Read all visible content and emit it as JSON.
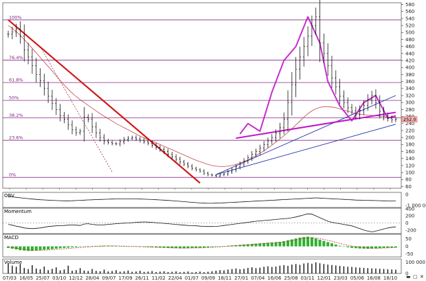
{
  "window": {
    "min_glyph": "▬",
    "restore_glyph": "▢",
    "close_glyph": "✕"
  },
  "chart_data": [
    {
      "type": "line",
      "panel": "price",
      "title": "",
      "x_tick_labels": [
        "07/03",
        "16/05",
        "25/07",
        "03/10",
        "12/12",
        "28/04",
        "09/07",
        "17/09",
        "26/11",
        "11/02",
        "22/04",
        "01/07",
        "09/09",
        "18/11",
        "27/01",
        "07/04",
        "16/06",
        "25/08",
        "03/11",
        "12/01",
        "23/03",
        "05/06",
        "16/08",
        "18/10"
      ],
      "y_ticks": [
        60,
        80,
        100,
        120,
        140,
        160,
        180,
        200,
        220,
        240,
        260,
        280,
        300,
        320,
        340,
        360,
        380,
        400,
        420,
        440,
        460,
        480,
        500,
        520,
        540,
        560,
        580
      ],
      "ylim": [
        55,
        585
      ],
      "grid": false,
      "fib_levels": [
        {
          "label": "100%",
          "value": 536
        },
        {
          "label": "76.4%",
          "value": 421
        },
        {
          "label": "61.8%",
          "value": 357
        },
        {
          "label": "50%",
          "value": 306
        },
        {
          "label": "38.2%",
          "value": 256
        },
        {
          "label": "23.6%",
          "value": 192
        },
        {
          "label": "0%",
          "value": 86
        }
      ],
      "last_price_label": "252.0",
      "last_price": 252,
      "series": [
        {
          "role": "close",
          "values": [
            495,
            502,
            510,
            490,
            450,
            430,
            405,
            380,
            362,
            340,
            318,
            297,
            280,
            262,
            252,
            236,
            222,
            214,
            218,
            258,
            252,
            230,
            213,
            200,
            190,
            186,
            183,
            182,
            188,
            194,
            198,
            200,
            196,
            192,
            188,
            184,
            178,
            172,
            166,
            160,
            152,
            145,
            138,
            130,
            124,
            118,
            112,
            108,
            104,
            98,
            94,
            92,
            90,
            93,
            96,
            102,
            108,
            116,
            124,
            133,
            142,
            152,
            160,
            170,
            180,
            190,
            200,
            212,
            228,
            252,
            300,
            350,
            395,
            430,
            460,
            490,
            520,
            545,
            470,
            440,
            405,
            370,
            345,
            318,
            300,
            285,
            276,
            265,
            278,
            292,
            308,
            320,
            300,
            275,
            262,
            255,
            250,
            252
          ]
        },
        {
          "role": "moving-average",
          "values": [
            520,
            512,
            503,
            492,
            480,
            467,
            455,
            442,
            429,
            416,
            403,
            390,
            376,
            363,
            350,
            338,
            327,
            317,
            308,
            300,
            292,
            284,
            276,
            268,
            261,
            254,
            247,
            240,
            234,
            228,
            222,
            216,
            210,
            204,
            199,
            194,
            190,
            185,
            180,
            175,
            170,
            165,
            160,
            155,
            150,
            145,
            140,
            135,
            131,
            127,
            123,
            120,
            118,
            117,
            117,
            118,
            120,
            123,
            127,
            131,
            136,
            142,
            148,
            155,
            162,
            170,
            178,
            187,
            196,
            205,
            215,
            225,
            236,
            247,
            258,
            268,
            276,
            282,
            286,
            288,
            288,
            287,
            285,
            282,
            278,
            275,
            272,
            269,
            267,
            265,
            264,
            263,
            262,
            261,
            260,
            259,
            258,
            258
          ]
        }
      ],
      "trendlines": [
        {
          "role": "downtrend",
          "color": "#d01818",
          "x": [
            0,
            48
          ],
          "y": [
            536,
            70
          ]
        },
        {
          "role": "dashed-downtrend",
          "color": "#8a1a1a",
          "x": [
            8,
            26
          ],
          "y": [
            460,
            102
          ]
        },
        {
          "role": "uptrend-1",
          "color": "#1a2aa8",
          "x": [
            52,
            97
          ],
          "y": [
            94,
            238
          ]
        },
        {
          "role": "uptrend-2",
          "color": "#1a2aa8",
          "x": [
            52,
            97
          ],
          "y": [
            94,
            320
          ]
        },
        {
          "role": "neckline",
          "color": "#c018c8",
          "x": [
            57,
            97
          ],
          "y": [
            198,
            272
          ]
        }
      ],
      "head_and_shoulders": {
        "color": "#c018c8",
        "x": [
          58,
          60,
          63,
          66,
          69,
          72,
          75,
          78,
          80,
          83,
          86,
          89,
          92,
          95,
          97
        ],
        "y": [
          210,
          240,
          218,
          330,
          420,
          460,
          545,
          470,
          360,
          290,
          248,
          300,
          320,
          255,
          262
        ]
      }
    },
    {
      "type": "line",
      "panel": "obv",
      "title": "OBV",
      "y_tick_labels": [
        "0",
        "-1 000 000"
      ],
      "ylim": [
        -1200000,
        200000
      ],
      "series": [
        {
          "role": "obv",
          "values": [
            -180000,
            -220000,
            -260000,
            -300000,
            -340000,
            -380000,
            -420000,
            -450000,
            -480000,
            -500000,
            -520000,
            -540000,
            -560000,
            -570000,
            -580000,
            -580000,
            -575000,
            -560000,
            -540000,
            -520000,
            -500000,
            -485000,
            -470000,
            -455000,
            -440000,
            -430000,
            -420000,
            -410000,
            -405000,
            -400000,
            -400000,
            -405000,
            -410000,
            -420000,
            -430000,
            -445000,
            -460000,
            -480000,
            -500000,
            -520000,
            -545000,
            -570000,
            -600000,
            -630000,
            -660000,
            -690000,
            -720000,
            -750000,
            -780000,
            -800000,
            -810000,
            -810000,
            -800000,
            -785000,
            -770000,
            -750000,
            -730000,
            -710000,
            -690000,
            -670000,
            -650000,
            -630000,
            -610000,
            -590000,
            -570000,
            -550000,
            -530000,
            -510000,
            -490000,
            -470000,
            -450000,
            -430000,
            -410000,
            -390000,
            -370000,
            -350000,
            -330000,
            -310000,
            -330000,
            -350000,
            -370000,
            -390000,
            -410000,
            -430000,
            -450000,
            -470000,
            -490000,
            -510000,
            -520000,
            -530000,
            -540000,
            -550000,
            -560000,
            -570000,
            -580000,
            -590000,
            -600000,
            -600000
          ]
        }
      ]
    },
    {
      "type": "line",
      "panel": "momentum",
      "title": "Momentum",
      "y_tick_labels": [
        "400",
        "200",
        "0",
        "-200"
      ],
      "ylim": [
        -300,
        420
      ],
      "series": [
        {
          "role": "momentum",
          "values": [
            -40,
            -60,
            -90,
            -110,
            -140,
            -150,
            -160,
            -150,
            -140,
            -120,
            -100,
            -90,
            -80,
            -75,
            -70,
            -60,
            -55,
            -60,
            -70,
            -30,
            -20,
            -40,
            -50,
            -55,
            -50,
            -40,
            -30,
            -20,
            -10,
            -5,
            0,
            10,
            20,
            25,
            30,
            25,
            20,
            10,
            0,
            -10,
            -20,
            -30,
            -40,
            -50,
            -60,
            -70,
            -75,
            -80,
            -90,
            -95,
            -100,
            -100,
            -95,
            -85,
            -70,
            -55,
            -40,
            -25,
            -10,
            5,
            20,
            35,
            50,
            60,
            70,
            80,
            90,
            100,
            110,
            120,
            130,
            150,
            170,
            200,
            230,
            260,
            250,
            200,
            150,
            100,
            50,
            20,
            0,
            -20,
            -40,
            -60,
            -80,
            -120,
            -160,
            -200,
            -230,
            -250,
            -230,
            -200,
            -170,
            -140,
            -120,
            -110
          ]
        }
      ]
    },
    {
      "type": "bar",
      "panel": "macd",
      "title": "MACD",
      "y_tick_labels": [
        "50",
        "0",
        "-50"
      ],
      "ylim": [
        -70,
        80
      ],
      "series": [
        {
          "role": "histogram",
          "values": [
            -10,
            -15,
            -20,
            -25,
            -28,
            -30,
            -30,
            -28,
            -25,
            -22,
            -20,
            -18,
            -15,
            -12,
            -10,
            -8,
            -6,
            -5,
            -3,
            -2,
            0,
            2,
            3,
            4,
            5,
            5,
            4,
            3,
            2,
            1,
            0,
            -1,
            -2,
            -3,
            -4,
            -5,
            -6,
            -7,
            -8,
            -9,
            -10,
            -11,
            -12,
            -13,
            -13,
            -12,
            -11,
            -10,
            -9,
            -8,
            -6,
            -4,
            -2,
            0,
            2,
            4,
            6,
            8,
            10,
            12,
            14,
            16,
            18,
            20,
            22,
            24,
            26,
            28,
            30,
            34,
            40,
            46,
            52,
            58,
            62,
            64,
            60,
            52,
            44,
            36,
            28,
            20,
            12,
            4,
            -2,
            -6,
            -10,
            -12,
            -14,
            -15,
            -16,
            -15,
            -14,
            -12,
            -10,
            -9,
            -8,
            -8
          ]
        },
        {
          "role": "signal",
          "values": [
            -5,
            -8,
            -12,
            -16,
            -20,
            -23,
            -25,
            -26,
            -26,
            -25,
            -24,
            -22,
            -20,
            -18,
            -16,
            -14,
            -12,
            -10,
            -8,
            -6,
            -4,
            -2,
            0,
            1,
            2,
            3,
            3,
            3,
            2,
            2,
            1,
            0,
            -1,
            -2,
            -3,
            -4,
            -5,
            -6,
            -7,
            -8,
            -9,
            -10,
            -10,
            -11,
            -11,
            -11,
            -11,
            -10,
            -10,
            -9,
            -8,
            -7,
            -5,
            -3,
            -1,
            1,
            3,
            5,
            7,
            9,
            11,
            13,
            15,
            17,
            19,
            21,
            23,
            25,
            27,
            30,
            34,
            38,
            43,
            48,
            52,
            56,
            57,
            55,
            51,
            46,
            40,
            34,
            27,
            20,
            13,
            7,
            2,
            -2,
            -5,
            -8,
            -10,
            -11,
            -12,
            -12,
            -11,
            -10,
            -9,
            -9
          ]
        }
      ]
    },
    {
      "type": "bar",
      "panel": "volume",
      "title": "Volume",
      "y_tick_labels": [
        "100 000",
        "0"
      ],
      "ylim": [
        0,
        130000
      ],
      "series": [
        {
          "role": "volume",
          "values": [
            90000,
            70000,
            60000,
            85000,
            50000,
            40000,
            75000,
            45000,
            38000,
            62000,
            30000,
            42000,
            55000,
            28000,
            36000,
            70000,
            25000,
            30000,
            48000,
            26000,
            22000,
            40000,
            24000,
            20000,
            35000,
            18000,
            22000,
            30000,
            16000,
            20000,
            26000,
            15000,
            18000,
            24000,
            14000,
            17000,
            22000,
            13000,
            16000,
            20000,
            12000,
            15000,
            19000,
            11000,
            14000,
            18000,
            10000,
            13000,
            17000,
            12000,
            15000,
            20000,
            25000,
            30000,
            28000,
            35000,
            40000,
            45000,
            38000,
            42000,
            50000,
            55000,
            48000,
            52000,
            60000,
            65000,
            58000,
            62000,
            70000,
            75000,
            68000,
            80000,
            85000,
            78000,
            90000,
            95000,
            88000,
            100000,
            92000,
            85000,
            80000,
            76000,
            72000,
            68000,
            64000,
            60000,
            58000,
            55000,
            52000,
            50000,
            48000,
            46000,
            44000,
            42000,
            40000,
            38000,
            36000,
            34000
          ]
        }
      ]
    }
  ]
}
